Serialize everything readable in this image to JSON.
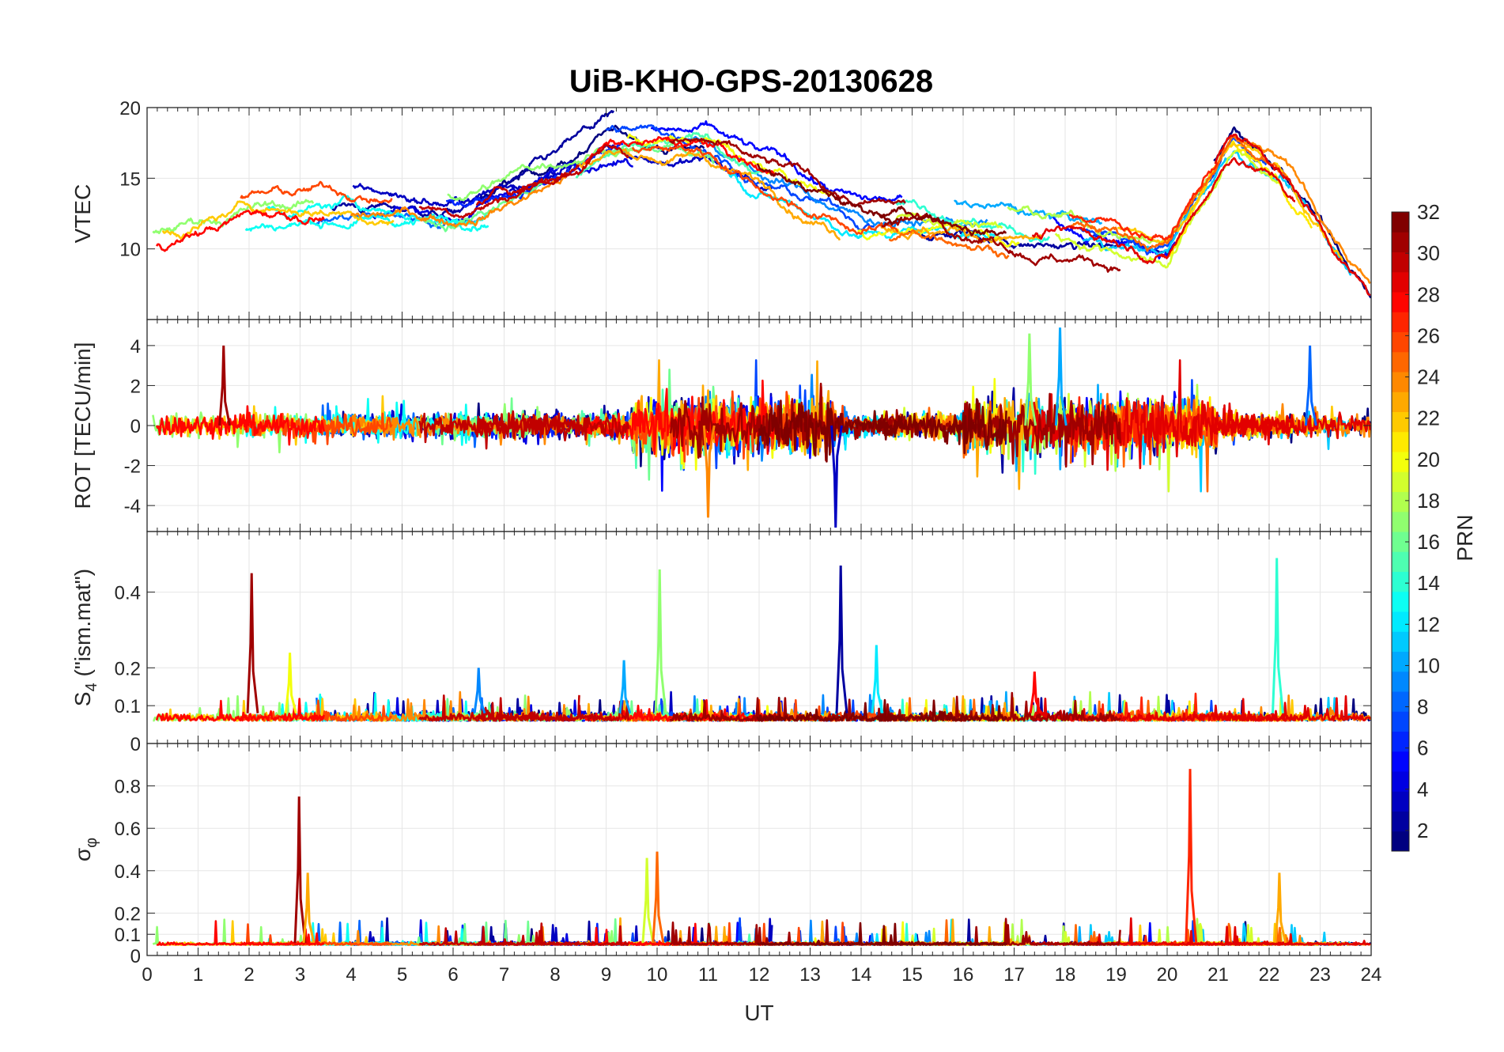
{
  "figure": {
    "title": "UiB-KHO-GPS-20130628",
    "xlabel": "UT",
    "xticks": [
      "0",
      "1",
      "2",
      "3",
      "4",
      "5",
      "6",
      "7",
      "8",
      "9",
      "10",
      "11",
      "12",
      "13",
      "14",
      "15",
      "16",
      "17",
      "18",
      "19",
      "20",
      "21",
      "22",
      "23",
      "24"
    ]
  },
  "colorbar": {
    "label": "PRN",
    "ticks": [
      "2",
      "4",
      "6",
      "8",
      "10",
      "12",
      "14",
      "16",
      "18",
      "20",
      "22",
      "24",
      "26",
      "28",
      "30",
      "32"
    ],
    "range": [
      1,
      32
    ],
    "colormap": "jet"
  },
  "chart_data": [
    {
      "type": "line",
      "panel": "vtec",
      "ylabel": "VTEC",
      "ylim": [
        5,
        20
      ],
      "yticks": [
        "10",
        "15",
        "20"
      ],
      "ytick_values": [
        10,
        15,
        20
      ],
      "xlim": [
        0,
        24
      ],
      "series_note": "multi-PRN time series, 1-32",
      "key_values": [
        {
          "x": 0.0,
          "y": 10.0
        },
        {
          "x": 2.0,
          "y": 12.5
        },
        {
          "x": 4.0,
          "y": 13.0
        },
        {
          "x": 6.0,
          "y": 12.5
        },
        {
          "x": 8.0,
          "y": 15.5
        },
        {
          "x": 9.0,
          "y": 17.5
        },
        {
          "x": 11.0,
          "y": 17.0
        },
        {
          "x": 12.0,
          "y": 15.0
        },
        {
          "x": 14.0,
          "y": 12.0
        },
        {
          "x": 16.0,
          "y": 12.0
        },
        {
          "x": 18.0,
          "y": 11.0
        },
        {
          "x": 20.0,
          "y": 10.0
        },
        {
          "x": 21.3,
          "y": 17.5
        },
        {
          "x": 22.2,
          "y": 15.5
        },
        {
          "x": 24.0,
          "y": 6.5
        }
      ]
    },
    {
      "type": "line",
      "panel": "rot",
      "ylabel": "ROT [TECU/min]",
      "ylim": [
        -5.3,
        5.3
      ],
      "yticks": [
        "-4",
        "-2",
        "0",
        "2",
        "4"
      ],
      "ytick_values": [
        -4,
        -2,
        0,
        2,
        4
      ],
      "xlim": [
        0,
        24
      ],
      "series_note": "multi-PRN time series, 1-32",
      "extremes": [
        {
          "x": 13.5,
          "y": -5.1
        },
        {
          "x": 17.9,
          "y": 4.9
        },
        {
          "x": 17.3,
          "y": 4.6
        },
        {
          "x": 11.0,
          "y": -4.6
        },
        {
          "x": 1.5,
          "y": 4.0
        },
        {
          "x": 22.8,
          "y": 4.0
        }
      ]
    },
    {
      "type": "line",
      "panel": "s4",
      "ylabel": "S",
      "ylabel_sub": "4",
      "ylabel_suffix": " (\"ism.mat\")",
      "ylim": [
        0,
        0.56
      ],
      "yticks": [
        "0",
        "0.1",
        "0.2",
        "0.4"
      ],
      "ytick_values": [
        0,
        0.1,
        0.2,
        0.4
      ],
      "xlim": [
        0,
        24
      ],
      "series_note": "multi-PRN time series, 1-32",
      "spikes": [
        {
          "x": 2.05,
          "y": 0.45,
          "prn": 31
        },
        {
          "x": 2.8,
          "y": 0.24,
          "prn": 20
        },
        {
          "x": 6.5,
          "y": 0.2,
          "prn": 9
        },
        {
          "x": 9.35,
          "y": 0.22,
          "prn": 10
        },
        {
          "x": 10.05,
          "y": 0.46,
          "prn": 17
        },
        {
          "x": 13.6,
          "y": 0.47,
          "prn": 2
        },
        {
          "x": 14.3,
          "y": 0.26,
          "prn": 12
        },
        {
          "x": 17.4,
          "y": 0.19,
          "prn": 28
        },
        {
          "x": 22.15,
          "y": 0.49,
          "prn": 14
        }
      ]
    },
    {
      "type": "line",
      "panel": "sigma_phi",
      "ylabel": "σ",
      "ylabel_sub": "φ",
      "ylim": [
        0,
        1.0
      ],
      "yticks": [
        "0",
        "0.1",
        "0.2",
        "0.4",
        "0.6",
        "0.8"
      ],
      "ytick_values": [
        0,
        0.1,
        0.2,
        0.4,
        0.6,
        0.8
      ],
      "xlim": [
        0,
        24
      ],
      "series_note": "multi-PRN time series, 1-32",
      "spikes": [
        {
          "x": 2.98,
          "y": 0.75,
          "prn": 31
        },
        {
          "x": 3.15,
          "y": 0.39,
          "prn": 23
        },
        {
          "x": 9.8,
          "y": 0.46,
          "prn": 19
        },
        {
          "x": 10.0,
          "y": 0.49,
          "prn": 25
        },
        {
          "x": 20.45,
          "y": 0.88,
          "prn": 27
        },
        {
          "x": 22.2,
          "y": 0.39,
          "prn": 23
        }
      ]
    }
  ]
}
